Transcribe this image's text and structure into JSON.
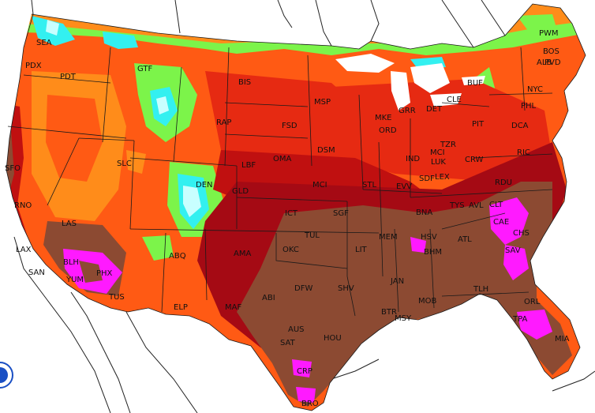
{
  "colors": {
    "ocean": "#ffffff",
    "land_outside": "#ffffff",
    "cyan": "#33f0f0",
    "light_cyan": "#c8ffff",
    "green": "#7cf44a",
    "orange": "#ff8c1a",
    "orange_red": "#ff5a14",
    "red": "#e62a12",
    "dark_red": "#c01010",
    "crimson": "#a50a14",
    "brown": "#8c4a32",
    "magenta": "#ff1aff",
    "lake": "#ffffff",
    "border": "#1a1a1a"
  },
  "cities": [
    {
      "code": "SEA"
    },
    {
      "code": "PDX"
    },
    {
      "code": "PDT"
    },
    {
      "code": "GTF"
    },
    {
      "code": "BIS"
    },
    {
      "code": "MSP"
    },
    {
      "code": "RAP"
    },
    {
      "code": "FSD"
    },
    {
      "code": "MKE"
    },
    {
      "code": "GRR"
    },
    {
      "code": "DET"
    },
    {
      "code": "CLE"
    },
    {
      "code": "PIT"
    },
    {
      "code": "BUF"
    },
    {
      "code": "ALB"
    },
    {
      "code": "PWM"
    },
    {
      "code": "BOS"
    },
    {
      "code": "PVD"
    },
    {
      "code": "NYC"
    },
    {
      "code": "PHL"
    },
    {
      "code": "DCA"
    },
    {
      "code": "RIC"
    },
    {
      "code": "ORD"
    },
    {
      "code": "DSM"
    },
    {
      "code": "OMA"
    },
    {
      "code": "TZR"
    },
    {
      "code": "IND"
    },
    {
      "code": "MCI"
    },
    {
      "code": "LUK"
    },
    {
      "code": "CRW"
    },
    {
      "code": "SLC"
    },
    {
      "code": "DEN"
    },
    {
      "code": "LBF"
    },
    {
      "code": "GLD"
    },
    {
      "code": "MCI"
    },
    {
      "code": "STL"
    },
    {
      "code": "EVV"
    },
    {
      "code": "SDF"
    },
    {
      "code": "LEX"
    },
    {
      "code": "RDU"
    },
    {
      "code": "ICT"
    },
    {
      "code": "SGF"
    },
    {
      "code": "BNA"
    },
    {
      "code": "TYS"
    },
    {
      "code": "AVL"
    },
    {
      "code": "CLT"
    },
    {
      "code": "SFO"
    },
    {
      "code": "RNO"
    },
    {
      "code": "LAS"
    },
    {
      "code": "LAX"
    },
    {
      "code": "SAN"
    },
    {
      "code": "BLH"
    },
    {
      "code": "YUM"
    },
    {
      "code": "PHX"
    },
    {
      "code": "TUS"
    },
    {
      "code": "ABQ"
    },
    {
      "code": "AMA"
    },
    {
      "code": "OKC"
    },
    {
      "code": "TUL"
    },
    {
      "code": "LIT"
    },
    {
      "code": "MEM"
    },
    {
      "code": "HSV"
    },
    {
      "code": "BHM"
    },
    {
      "code": "ATL"
    },
    {
      "code": "CAE"
    },
    {
      "code": "CHS"
    },
    {
      "code": "SAV"
    },
    {
      "code": "ELP"
    },
    {
      "code": "MAF"
    },
    {
      "code": "ABI"
    },
    {
      "code": "DFW"
    },
    {
      "code": "SHV"
    },
    {
      "code": "JAN"
    },
    {
      "code": "MOB"
    },
    {
      "code": "TLH"
    },
    {
      "code": "BTR"
    },
    {
      "code": "MSY"
    },
    {
      "code": "AUS"
    },
    {
      "code": "SAT"
    },
    {
      "code": "HOU"
    },
    {
      "code": "ORL"
    },
    {
      "code": "TPA"
    },
    {
      "code": "MIA"
    },
    {
      "code": "CRP"
    },
    {
      "code": "BRO"
    }
  ]
}
